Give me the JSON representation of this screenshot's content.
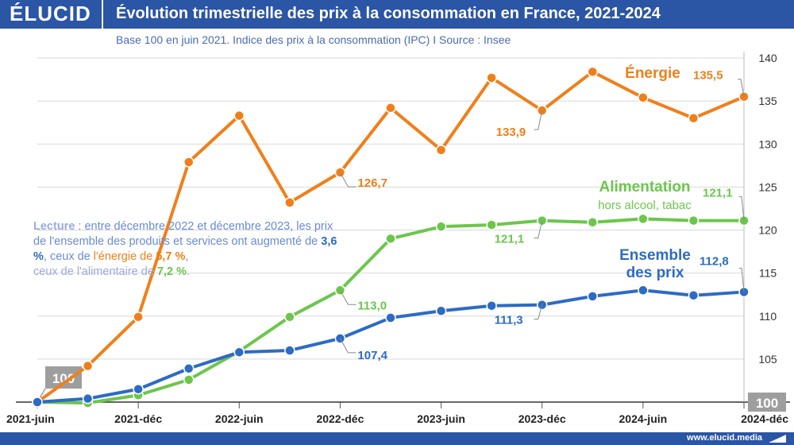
{
  "header": {
    "logo": "ÉLUCID",
    "title": "Évolution trimestrielle des prix à la consommation en France, 2021-2024",
    "subtitle": "Base 100 en juin 2021. Indice des prix à la consommation (IPC)  I  Source : Insee"
  },
  "footer": {
    "url": "www.elucid.media"
  },
  "lecture": {
    "lead": "Lecture",
    "t1": " : entre décembre 2022 et décembre 2023, les prix de l'ensemble des produits et services ont augmenté de ",
    "v_all": "3,6 %",
    "t2": ", ceux de ",
    "energy_word": "l'énergie de ",
    "v_energy": "5,7 %",
    "t3": ",",
    "food_word": "ceux de l'alimentaire de ",
    "v_food": "7,2 %",
    "t4": "."
  },
  "chart_data": {
    "type": "line",
    "x": [
      "2021-juin",
      "2021-sep",
      "2021-déc",
      "2022-mar",
      "2022-juin",
      "2022-sep",
      "2022-déc",
      "2023-mar",
      "2023-juin",
      "2023-sep",
      "2023-déc",
      "2024-mar",
      "2024-juin",
      "2024-sep",
      "2024-déc"
    ],
    "x_tick_labels": [
      "2021-juin",
      "2021-déc",
      "2022-juin",
      "2022-déc",
      "2023-juin",
      "2023-déc",
      "2024-juin",
      "2024-déc"
    ],
    "ylim": [
      100,
      140
    ],
    "yticks": [
      105,
      110,
      115,
      120,
      125,
      130,
      135,
      140
    ],
    "y_base_label": "100",
    "start_label": "100",
    "colors": {
      "Énergie": "#f07f1a",
      "Alimentation": "#6cc64c",
      "Ensemble des prix": "#2d6bc4"
    },
    "series": [
      {
        "name": "Énergie",
        "label_lines": [
          "Énergie"
        ],
        "values": [
          100,
          104.2,
          109.9,
          127.9,
          133.3,
          123.2,
          126.7,
          134.2,
          129.3,
          137.7,
          133.9,
          138.4,
          135.4,
          133.0,
          135.5
        ],
        "annotations": [
          {
            "index": 6,
            "text": "126,7"
          },
          {
            "index": 10,
            "text": "133,9"
          },
          {
            "index": 14,
            "text": "135,5"
          }
        ]
      },
      {
        "name": "Alimentation",
        "label_lines": [
          "Alimentation",
          "hors alcool, tabac"
        ],
        "values": [
          100,
          99.9,
          100.8,
          102.6,
          105.9,
          109.9,
          113.0,
          119.0,
          120.4,
          120.6,
          121.1,
          120.9,
          121.3,
          121.1,
          121.1
        ],
        "annotations": [
          {
            "index": 6,
            "text": "113,0"
          },
          {
            "index": 10,
            "text": "121,1"
          },
          {
            "index": 14,
            "text": "121,1"
          }
        ]
      },
      {
        "name": "Ensemble des prix",
        "label_lines": [
          "Ensemble",
          "des prix"
        ],
        "values": [
          100,
          100.4,
          101.5,
          103.9,
          105.8,
          106.0,
          107.4,
          109.8,
          110.6,
          111.2,
          111.3,
          112.3,
          113.0,
          112.4,
          112.8
        ],
        "annotations": [
          {
            "index": 6,
            "text": "107,4"
          },
          {
            "index": 10,
            "text": "111,3"
          },
          {
            "index": 14,
            "text": "112,8"
          }
        ]
      }
    ]
  }
}
